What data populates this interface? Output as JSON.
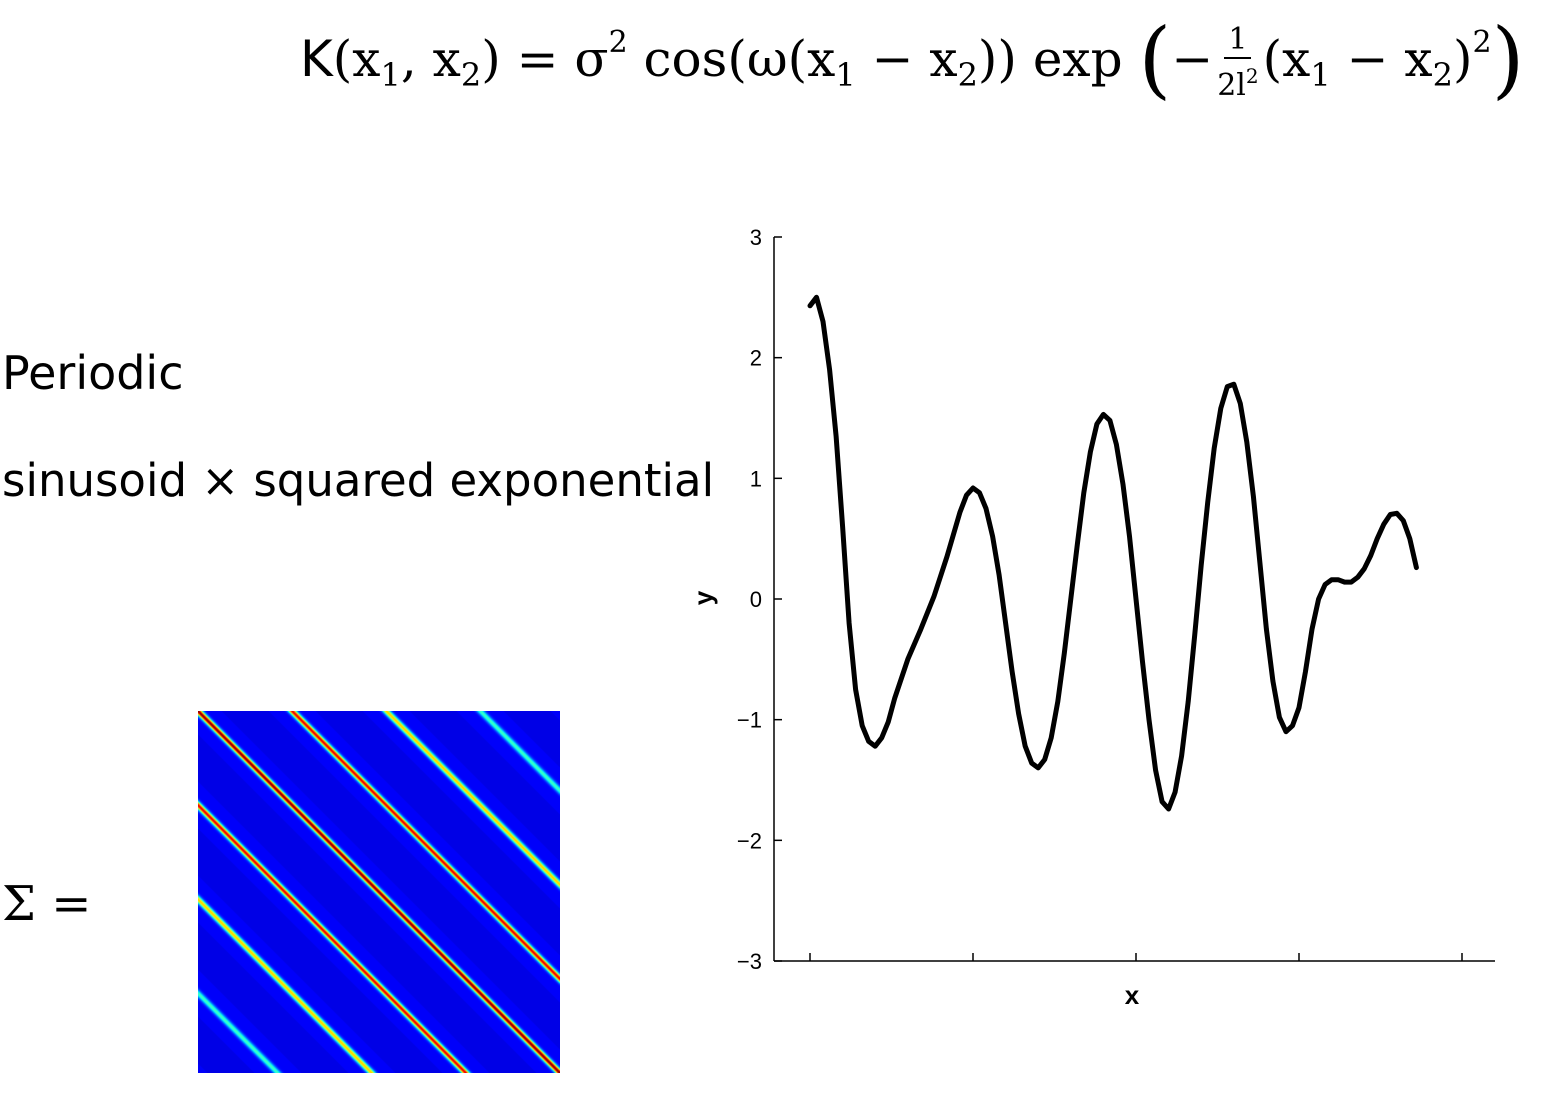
{
  "formula": {
    "lhs_K": "K",
    "lhs_args": "(x",
    "lhs_sub1": "1",
    "lhs_comma": ", x",
    "lhs_sub2": "2",
    "lhs_close": ") = σ",
    "sigma_exp": "2",
    "cos_part": " cos(ω(x",
    "cos_sub1": "1",
    "cos_minus": " − x",
    "cos_sub2": "2",
    "cos_close": ")) exp",
    "paren_open": "(",
    "minus": "−",
    "frac_num": "1",
    "frac_den": "2l",
    "frac_den_exp": "2",
    "tail_open": "(x",
    "tail_sub1": "1",
    "tail_minus": " − x",
    "tail_sub2": "2",
    "tail_close": ")",
    "tail_exp": "2",
    "paren_close": ")"
  },
  "labels": {
    "heading": "Periodic",
    "subheading": "sinusoid × squared exponential",
    "sigma": "Σ ="
  },
  "colors": {
    "curve": "#000000",
    "matrix_background": "#00008f",
    "matrix_diagonal": "#b80000",
    "matrix_band": "#00ffff"
  },
  "chart_data": {
    "type": "line",
    "xlabel": "x",
    "ylabel": "y",
    "ylim": [
      -3,
      3
    ],
    "yticks": [
      "3",
      "2",
      "1",
      "0",
      "−1",
      "−2",
      "−3"
    ],
    "xlim": [
      0,
      1
    ],
    "x_tick_count": 5,
    "x_tick_labels_shown": false,
    "grid": false,
    "series": [
      {
        "points": [
          [
            0.0,
            2.43
          ],
          [
            0.01,
            2.5
          ],
          [
            0.02,
            2.3
          ],
          [
            0.03,
            1.9
          ],
          [
            0.04,
            1.35
          ],
          [
            0.05,
            0.6
          ],
          [
            0.06,
            -0.2
          ],
          [
            0.07,
            -0.75
          ],
          [
            0.08,
            -1.05
          ],
          [
            0.09,
            -1.18
          ],
          [
            0.1,
            -1.22
          ],
          [
            0.11,
            -1.15
          ],
          [
            0.12,
            -1.02
          ],
          [
            0.13,
            -0.82
          ],
          [
            0.15,
            -0.5
          ],
          [
            0.17,
            -0.25
          ],
          [
            0.19,
            0.02
          ],
          [
            0.21,
            0.35
          ],
          [
            0.23,
            0.72
          ],
          [
            0.24,
            0.86
          ],
          [
            0.25,
            0.92
          ],
          [
            0.26,
            0.88
          ],
          [
            0.27,
            0.75
          ],
          [
            0.28,
            0.52
          ],
          [
            0.29,
            0.2
          ],
          [
            0.3,
            -0.2
          ],
          [
            0.31,
            -0.6
          ],
          [
            0.32,
            -0.95
          ],
          [
            0.33,
            -1.22
          ],
          [
            0.34,
            -1.36
          ],
          [
            0.35,
            -1.4
          ],
          [
            0.36,
            -1.33
          ],
          [
            0.37,
            -1.15
          ],
          [
            0.38,
            -0.85
          ],
          [
            0.39,
            -0.45
          ],
          [
            0.4,
            0.0
          ],
          [
            0.41,
            0.45
          ],
          [
            0.42,
            0.88
          ],
          [
            0.43,
            1.22
          ],
          [
            0.44,
            1.45
          ],
          [
            0.45,
            1.53
          ],
          [
            0.46,
            1.48
          ],
          [
            0.47,
            1.28
          ],
          [
            0.48,
            0.95
          ],
          [
            0.49,
            0.52
          ],
          [
            0.5,
            0.0
          ],
          [
            0.51,
            -0.52
          ],
          [
            0.52,
            -1.0
          ],
          [
            0.53,
            -1.42
          ],
          [
            0.54,
            -1.68
          ],
          [
            0.55,
            -1.74
          ],
          [
            0.56,
            -1.6
          ],
          [
            0.57,
            -1.3
          ],
          [
            0.58,
            -0.85
          ],
          [
            0.59,
            -0.3
          ],
          [
            0.6,
            0.28
          ],
          [
            0.61,
            0.8
          ],
          [
            0.62,
            1.25
          ],
          [
            0.63,
            1.58
          ],
          [
            0.64,
            1.76
          ],
          [
            0.65,
            1.78
          ],
          [
            0.66,
            1.62
          ],
          [
            0.67,
            1.3
          ],
          [
            0.68,
            0.85
          ],
          [
            0.69,
            0.3
          ],
          [
            0.7,
            -0.25
          ],
          [
            0.71,
            -0.68
          ],
          [
            0.72,
            -0.98
          ],
          [
            0.73,
            -1.1
          ],
          [
            0.74,
            -1.05
          ],
          [
            0.75,
            -0.9
          ],
          [
            0.76,
            -0.6
          ],
          [
            0.77,
            -0.25
          ],
          [
            0.78,
            0.0
          ],
          [
            0.79,
            0.12
          ],
          [
            0.8,
            0.16
          ],
          [
            0.81,
            0.16
          ],
          [
            0.82,
            0.14
          ],
          [
            0.83,
            0.14
          ],
          [
            0.84,
            0.18
          ],
          [
            0.85,
            0.25
          ],
          [
            0.86,
            0.36
          ],
          [
            0.87,
            0.5
          ],
          [
            0.88,
            0.62
          ],
          [
            0.89,
            0.7
          ],
          [
            0.9,
            0.71
          ],
          [
            0.91,
            0.65
          ],
          [
            0.92,
            0.5
          ],
          [
            0.93,
            0.26
          ]
        ]
      }
    ]
  }
}
